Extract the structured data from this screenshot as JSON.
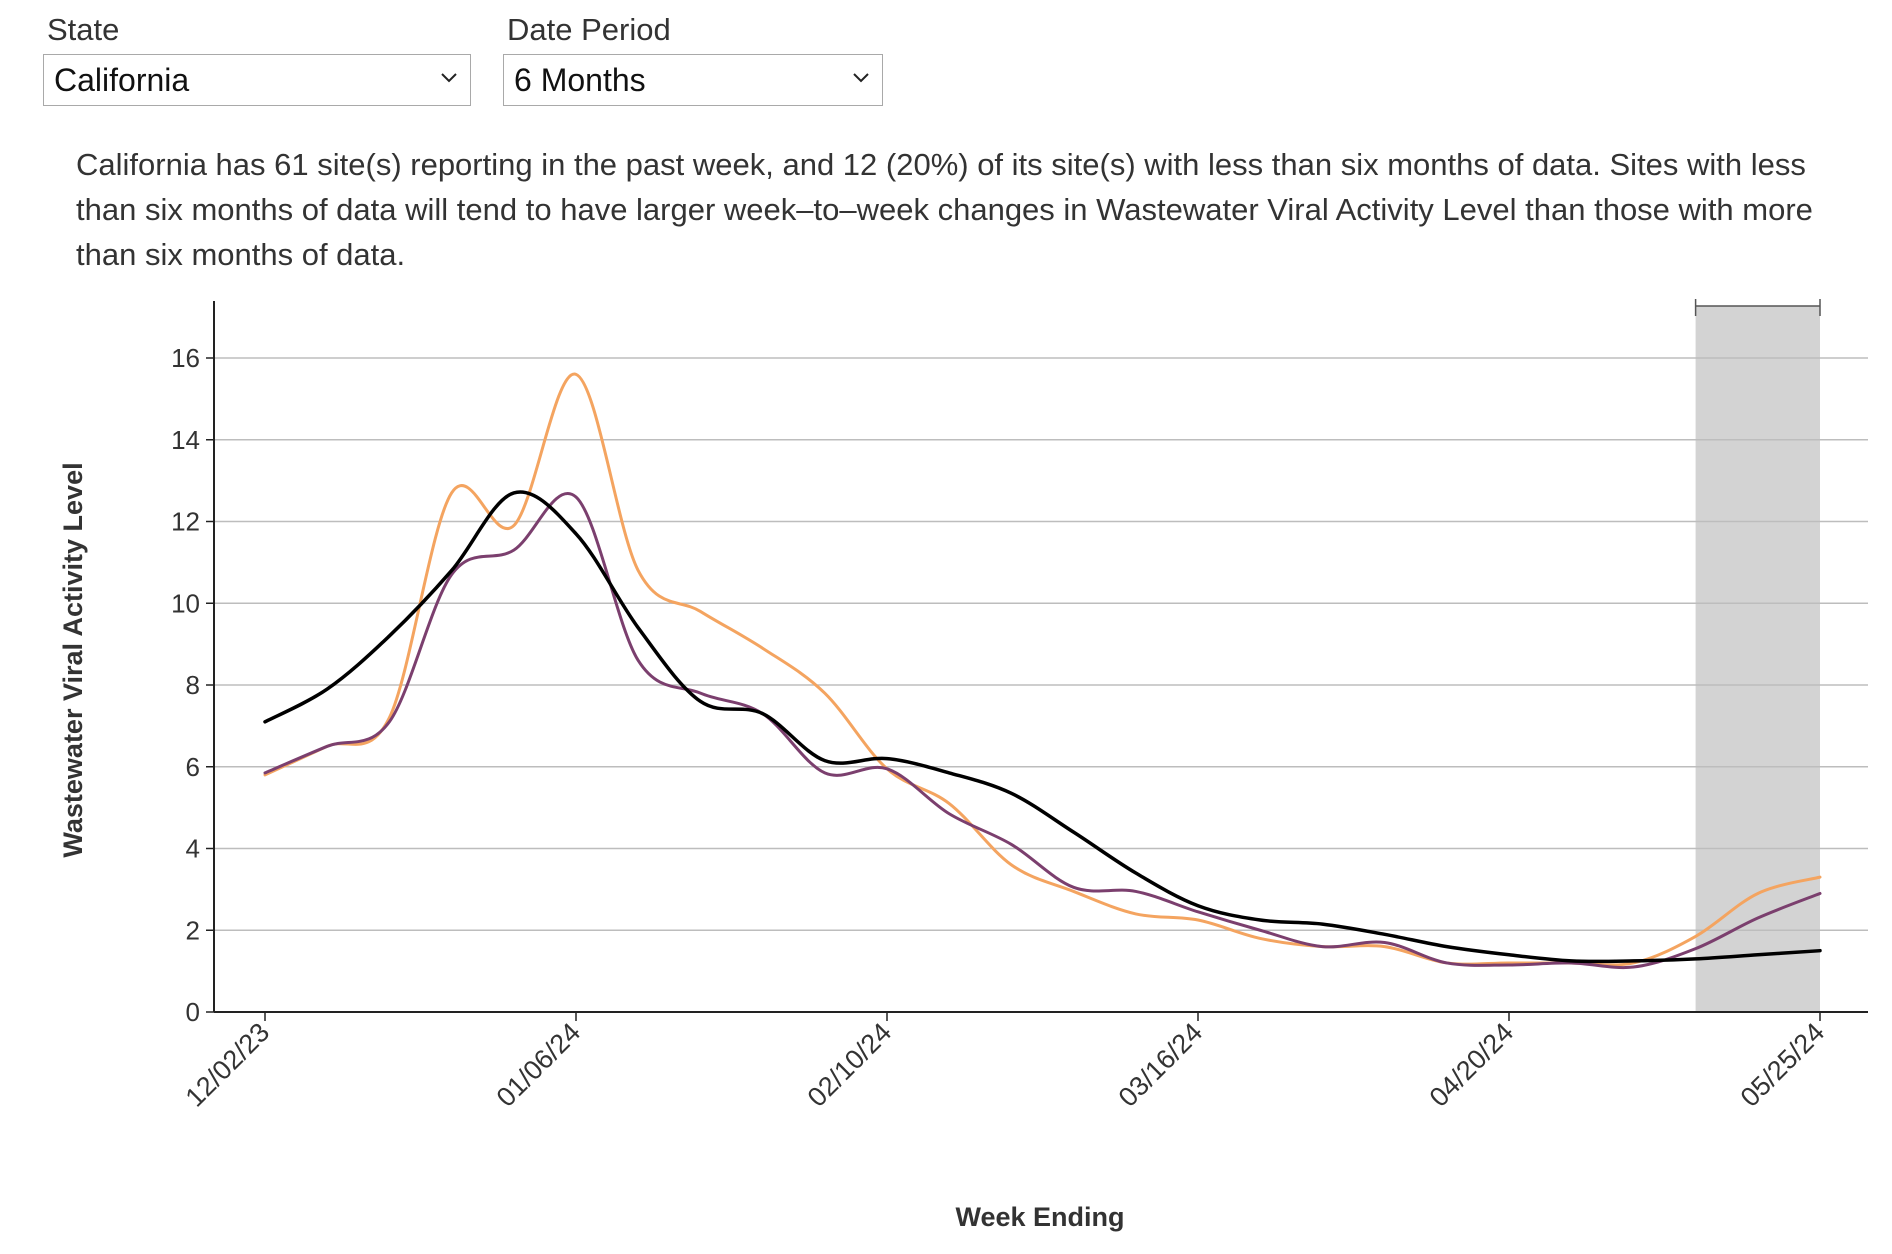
{
  "controls": {
    "state_label": "State",
    "state_value": "California",
    "period_label": "Date Period",
    "period_value": "6 Months"
  },
  "description": "California has 61 site(s) reporting in the past week, and 12 (20%) of its site(s) with less than six months of data. Sites with less than six months of data will tend to have larger week–to–week changes in Wastewater Viral Activity Level than those with more than six months of data.",
  "colors": {
    "black_series": "#000000",
    "orange_series": "#f4a460",
    "purple_series": "#7b3f6e",
    "grid": "#bdbdbd",
    "shade": "#d3d3d3"
  },
  "chart_data": {
    "type": "line",
    "title": "",
    "xlabel": "Week Ending",
    "ylabel": "Wastewater Viral Activity Level",
    "ylim": [
      0,
      17
    ],
    "yticks": [
      0,
      2,
      4,
      6,
      8,
      10,
      12,
      14,
      16
    ],
    "grid": true,
    "week_index": [
      0,
      1,
      2,
      3,
      4,
      5,
      6,
      7,
      8,
      9,
      10,
      11,
      12,
      13,
      14,
      15,
      16,
      17,
      18,
      19,
      20,
      21,
      22,
      23,
      24,
      25
    ],
    "xtick_labels": [
      {
        "week": 0,
        "label": "12/02/23"
      },
      {
        "week": 5,
        "label": "01/06/24"
      },
      {
        "week": 10,
        "label": "02/10/24"
      },
      {
        "week": 15,
        "label": "03/16/24"
      },
      {
        "week": 20,
        "label": "04/20/24"
      },
      {
        "week": 25,
        "label": "05/25/24"
      }
    ],
    "shaded_range": [
      23.0,
      25.0
    ],
    "series": [
      {
        "name": "black",
        "color": "#000000",
        "values": [
          7.1,
          7.9,
          9.2,
          10.8,
          12.7,
          11.7,
          9.4,
          7.6,
          7.3,
          6.15,
          6.2,
          5.85,
          5.35,
          4.4,
          3.4,
          2.6,
          2.25,
          2.15,
          1.9,
          1.6,
          1.4,
          1.25,
          1.25,
          1.3,
          1.4,
          1.5
        ]
      },
      {
        "name": "orange",
        "color": "#f4a460",
        "values": [
          5.8,
          6.5,
          7.2,
          12.7,
          11.9,
          15.6,
          10.8,
          9.8,
          8.9,
          7.8,
          5.95,
          5.1,
          3.6,
          2.95,
          2.4,
          2.25,
          1.8,
          1.6,
          1.6,
          1.2,
          1.2,
          1.2,
          1.2,
          1.85,
          2.9,
          3.3
        ]
      },
      {
        "name": "purple",
        "color": "#7b3f6e",
        "values": [
          5.85,
          6.5,
          7.1,
          10.7,
          11.3,
          12.6,
          8.6,
          7.8,
          7.3,
          5.85,
          5.95,
          4.85,
          4.1,
          3.05,
          2.95,
          2.45,
          2.0,
          1.6,
          1.7,
          1.2,
          1.15,
          1.2,
          1.1,
          1.55,
          2.3,
          2.9
        ]
      }
    ]
  }
}
